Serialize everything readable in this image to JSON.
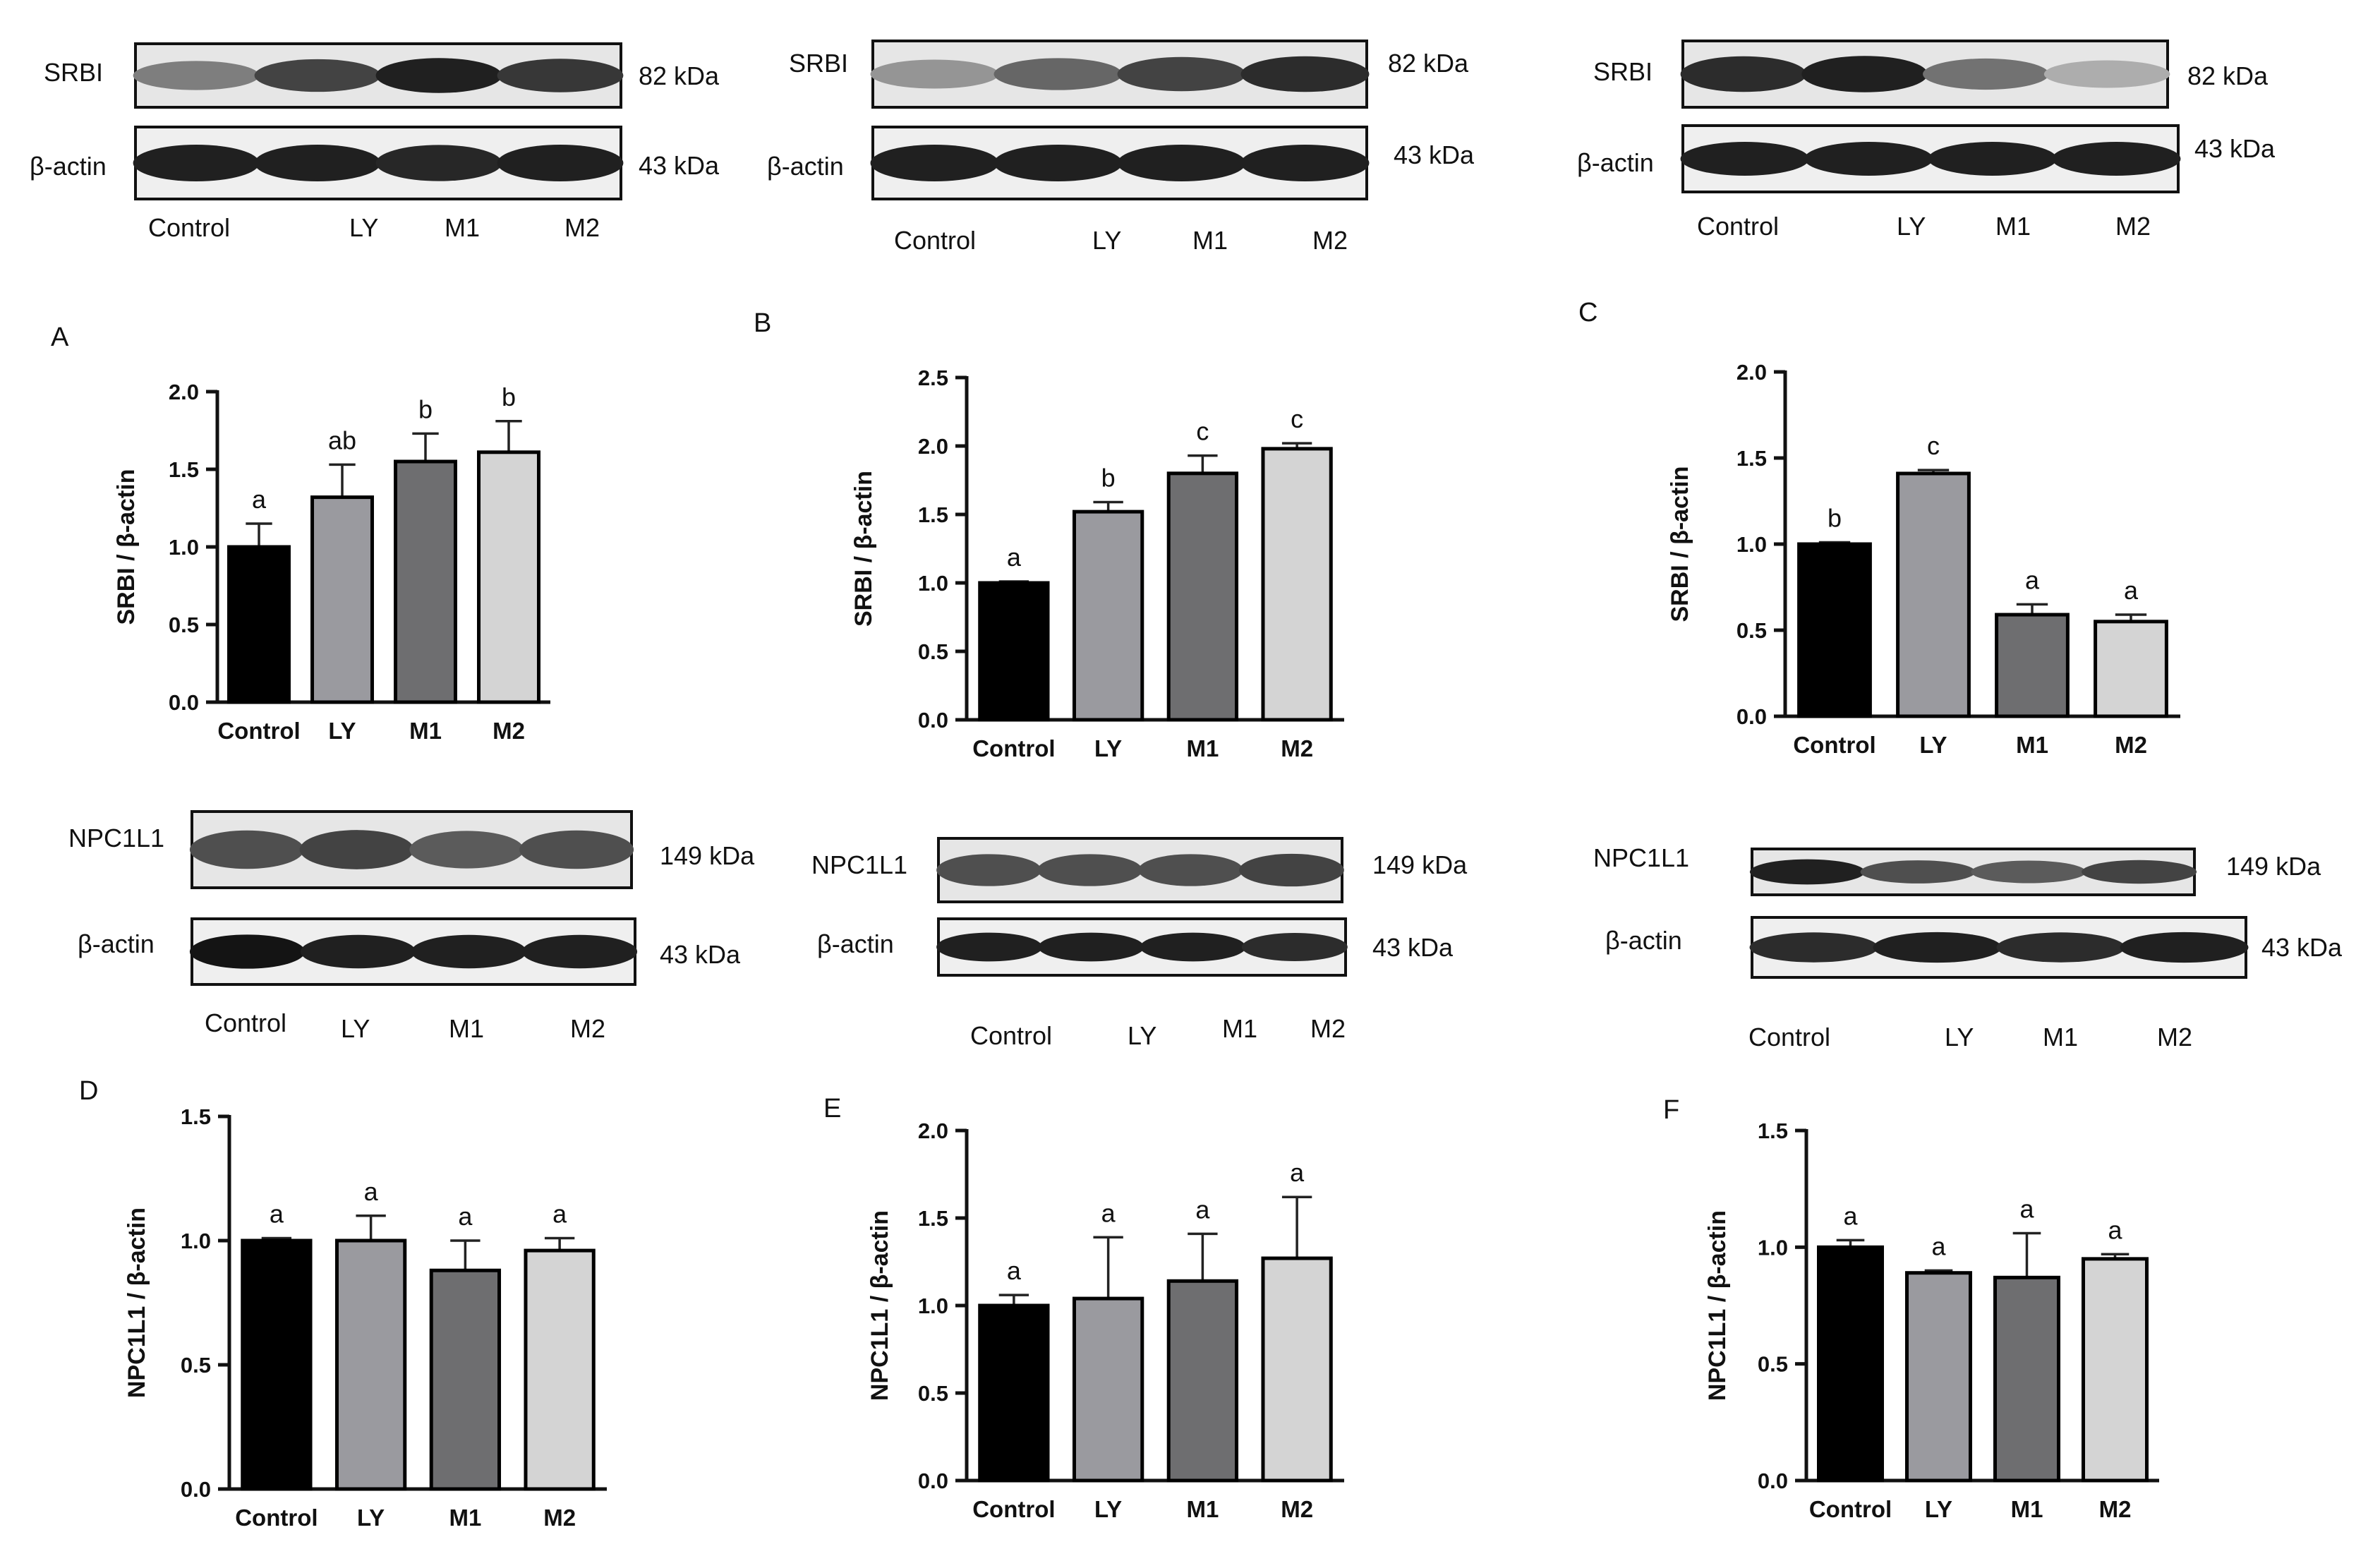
{
  "blots": [
    {
      "target_label": "SRBI",
      "target_kda": "82 kDa",
      "control_label": "β-actin",
      "control_kda": "43 kDa",
      "lanes": [
        "Control",
        "LY",
        "M1",
        "M2"
      ],
      "target_band_intensity": [
        0.55,
        0.8,
        0.95,
        0.85
      ],
      "control_band_intensity": [
        0.95,
        0.95,
        0.92,
        0.95
      ]
    },
    {
      "target_label": "SRBI",
      "target_kda": "82 kDa",
      "control_label": "β-actin",
      "control_kda": "43 kDa",
      "lanes": [
        "Control",
        "LY",
        "M1",
        "M2"
      ],
      "target_band_intensity": [
        0.45,
        0.65,
        0.8,
        0.9
      ],
      "control_band_intensity": [
        0.95,
        0.95,
        0.95,
        0.95
      ]
    },
    {
      "target_label": "SRBI",
      "target_kda": "82 kDa",
      "control_label": "β-actin",
      "control_kda": "43 kDa",
      "lanes": [
        "Control",
        "LY",
        "M1",
        "M2"
      ],
      "target_band_intensity": [
        0.9,
        0.95,
        0.6,
        0.35
      ],
      "control_band_intensity": [
        0.95,
        0.95,
        0.95,
        0.95
      ]
    },
    {
      "target_label": "NPC1L1",
      "target_kda": "149 kDa",
      "control_label": "β-actin",
      "control_kda": "43 kDa",
      "lanes": [
        "Control",
        "LY",
        "M1",
        "M2"
      ],
      "target_band_intensity": [
        0.75,
        0.8,
        0.7,
        0.75
      ],
      "control_band_intensity": [
        1.0,
        0.95,
        0.95,
        0.95
      ]
    },
    {
      "target_label": "NPC1L1",
      "target_kda": "149 kDa",
      "control_label": "β-actin",
      "control_kda": "43 kDa",
      "lanes": [
        "Control",
        "LY",
        "M1",
        "M2"
      ],
      "target_band_intensity": [
        0.75,
        0.75,
        0.75,
        0.8
      ],
      "control_band_intensity": [
        0.95,
        0.95,
        0.95,
        0.9
      ]
    },
    {
      "target_label": "NPC1L1",
      "target_kda": "149 kDa",
      "control_label": "β-actin",
      "control_kda": "43 kDa",
      "lanes": [
        "Control",
        "LY",
        "M1",
        "M2"
      ],
      "target_band_intensity": [
        0.95,
        0.75,
        0.7,
        0.8
      ],
      "control_band_intensity": [
        0.9,
        0.95,
        0.9,
        0.95
      ]
    }
  ],
  "chart_data": [
    {
      "panel": "A",
      "type": "bar",
      "categories": [
        "Control",
        "LY",
        "M1",
        "M2"
      ],
      "values": [
        1.0,
        1.32,
        1.55,
        1.61
      ],
      "errors": [
        0.15,
        0.21,
        0.18,
        0.2
      ],
      "significance": [
        "a",
        "ab",
        "b",
        "b"
      ],
      "ylabel": "SRBI / β-actin",
      "ylim": [
        0,
        2.0
      ],
      "yticks": [
        "0.0",
        "0.5",
        "1.0",
        "1.5",
        "2.0"
      ],
      "colors": [
        "#000000",
        "#9a9a9f",
        "#6e6e70",
        "#d4d4d4"
      ]
    },
    {
      "panel": "B",
      "type": "bar",
      "categories": [
        "Control",
        "LY",
        "M1",
        "M2"
      ],
      "values": [
        1.0,
        1.52,
        1.8,
        1.98
      ],
      "errors": [
        0.01,
        0.07,
        0.13,
        0.04
      ],
      "significance": [
        "a",
        "b",
        "c",
        "c"
      ],
      "ylabel": "SRBI / β-actin",
      "ylim": [
        0,
        2.5
      ],
      "yticks": [
        "0.0",
        "0.5",
        "1.0",
        "1.5",
        "2.0",
        "2.5"
      ],
      "colors": [
        "#000000",
        "#9a9a9f",
        "#6e6e70",
        "#d4d4d4"
      ]
    },
    {
      "panel": "C",
      "type": "bar",
      "categories": [
        "Control",
        "LY",
        "M1",
        "M2"
      ],
      "values": [
        1.0,
        1.41,
        0.59,
        0.55
      ],
      "errors": [
        0.01,
        0.02,
        0.06,
        0.04
      ],
      "significance": [
        "b",
        "c",
        "a",
        "a"
      ],
      "ylabel": "SRBI / β-actin",
      "ylim": [
        0,
        2.0
      ],
      "yticks": [
        "0.0",
        "0.5",
        "1.0",
        "1.5",
        "2.0"
      ],
      "colors": [
        "#000000",
        "#9a9a9f",
        "#6e6e70",
        "#d4d4d4"
      ]
    },
    {
      "panel": "D",
      "type": "bar",
      "categories": [
        "Control",
        "LY",
        "M1",
        "M2"
      ],
      "values": [
        1.0,
        1.0,
        0.88,
        0.96
      ],
      "errors": [
        0.01,
        0.1,
        0.12,
        0.05
      ],
      "significance": [
        "a",
        "a",
        "a",
        "a"
      ],
      "ylabel": "NPC1L1 / β-actin",
      "ylim": [
        0,
        1.5
      ],
      "yticks": [
        "0.0",
        "0.5",
        "1.0",
        "1.5"
      ],
      "colors": [
        "#000000",
        "#9a9a9f",
        "#6e6e70",
        "#d4d4d4"
      ]
    },
    {
      "panel": "E",
      "type": "bar",
      "categories": [
        "Control",
        "LY",
        "M1",
        "M2"
      ],
      "values": [
        1.0,
        1.04,
        1.14,
        1.27
      ],
      "errors": [
        0.06,
        0.35,
        0.27,
        0.35
      ],
      "significance": [
        "a",
        "a",
        "a",
        "a"
      ],
      "ylabel": "NPC1L1 / β-actin",
      "ylim": [
        0,
        2.0
      ],
      "yticks": [
        "0.0",
        "0.5",
        "1.0",
        "1.5",
        "2.0"
      ],
      "colors": [
        "#000000",
        "#9a9a9f",
        "#6e6e70",
        "#d4d4d4"
      ]
    },
    {
      "panel": "F",
      "type": "bar",
      "categories": [
        "Control",
        "LY",
        "M1",
        "M2"
      ],
      "values": [
        1.0,
        0.89,
        0.87,
        0.95
      ],
      "errors": [
        0.03,
        0.01,
        0.19,
        0.02
      ],
      "significance": [
        "a",
        "a",
        "a",
        "a"
      ],
      "ylabel": "NPC1L1 / β-actin",
      "ylim": [
        0,
        1.5
      ],
      "yticks": [
        "0.0",
        "0.5",
        "1.0",
        "1.5"
      ],
      "colors": [
        "#000000",
        "#9a9a9f",
        "#6e6e70",
        "#d4d4d4"
      ]
    }
  ]
}
